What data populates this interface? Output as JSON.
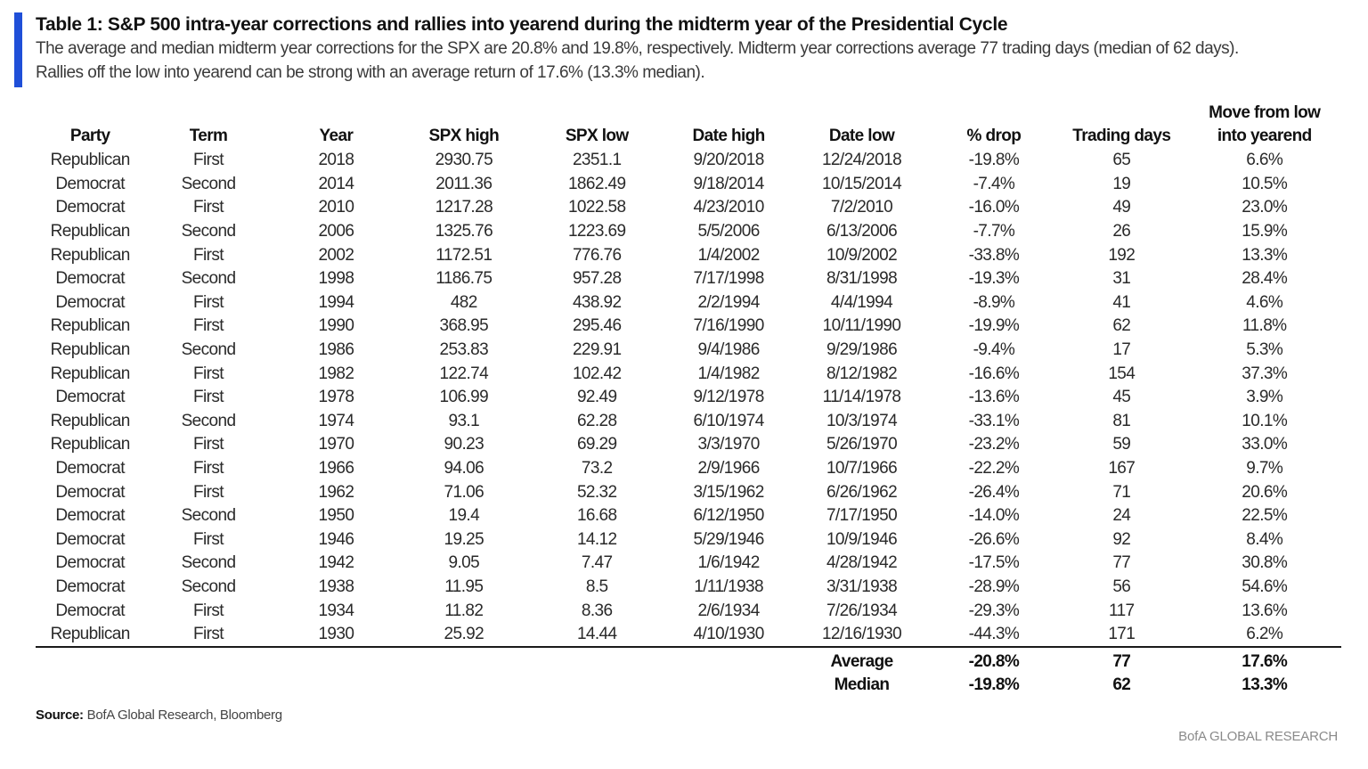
{
  "header": {
    "title": "Table 1: S&P 500 intra-year  corrections and rallies into yearend during the midterm year of the Presidential Cycle",
    "subtitle_line1": "The average and median midterm year corrections for the SPX are 20.8% and 19.8%, respectively. Midterm year corrections average 77 trading days (median of 62 days).",
    "subtitle_line2": "Rallies off the low into yearend can be strong with an average return of 17.6% (13.3% median).",
    "accent_color": "#1f4fd8"
  },
  "table": {
    "columns": {
      "party": "Party",
      "term": "Term",
      "year": "Year",
      "spx_high": "SPX high",
      "spx_low": "SPX low",
      "date_high": "Date high",
      "date_low": "Date low",
      "pct_drop": "% drop",
      "trading_days": "Trading days",
      "move_line1": "Move from low",
      "move_line2": "into yearend"
    },
    "rows": [
      [
        "Republican",
        "First",
        "2018",
        "2930.75",
        "2351.1",
        "9/20/2018",
        "12/24/2018",
        "-19.8%",
        "65",
        "6.6%"
      ],
      [
        "Democrat",
        "Second",
        "2014",
        "2011.36",
        "1862.49",
        "9/18/2014",
        "10/15/2014",
        "-7.4%",
        "19",
        "10.5%"
      ],
      [
        "Democrat",
        "First",
        "2010",
        "1217.28",
        "1022.58",
        "4/23/2010",
        "7/2/2010",
        "-16.0%",
        "49",
        "23.0%"
      ],
      [
        "Republican",
        "Second",
        "2006",
        "1325.76",
        "1223.69",
        "5/5/2006",
        "6/13/2006",
        "-7.7%",
        "26",
        "15.9%"
      ],
      [
        "Republican",
        "First",
        "2002",
        "1172.51",
        "776.76",
        "1/4/2002",
        "10/9/2002",
        "-33.8%",
        "192",
        "13.3%"
      ],
      [
        "Democrat",
        "Second",
        "1998",
        "1186.75",
        "957.28",
        "7/17/1998",
        "8/31/1998",
        "-19.3%",
        "31",
        "28.4%"
      ],
      [
        "Democrat",
        "First",
        "1994",
        "482",
        "438.92",
        "2/2/1994",
        "4/4/1994",
        "-8.9%",
        "41",
        "4.6%"
      ],
      [
        "Republican",
        "First",
        "1990",
        "368.95",
        "295.46",
        "7/16/1990",
        "10/11/1990",
        "-19.9%",
        "62",
        "11.8%"
      ],
      [
        "Republican",
        "Second",
        "1986",
        "253.83",
        "229.91",
        "9/4/1986",
        "9/29/1986",
        "-9.4%",
        "17",
        "5.3%"
      ],
      [
        "Republican",
        "First",
        "1982",
        "122.74",
        "102.42",
        "1/4/1982",
        "8/12/1982",
        "-16.6%",
        "154",
        "37.3%"
      ],
      [
        "Democrat",
        "First",
        "1978",
        "106.99",
        "92.49",
        "9/12/1978",
        "11/14/1978",
        "-13.6%",
        "45",
        "3.9%"
      ],
      [
        "Republican",
        "Second",
        "1974",
        "93.1",
        "62.28",
        "6/10/1974",
        "10/3/1974",
        "-33.1%",
        "81",
        "10.1%"
      ],
      [
        "Republican",
        "First",
        "1970",
        "90.23",
        "69.29",
        "3/3/1970",
        "5/26/1970",
        "-23.2%",
        "59",
        "33.0%"
      ],
      [
        "Democrat",
        "First",
        "1966",
        "94.06",
        "73.2",
        "2/9/1966",
        "10/7/1966",
        "-22.2%",
        "167",
        "9.7%"
      ],
      [
        "Democrat",
        "First",
        "1962",
        "71.06",
        "52.32",
        "3/15/1962",
        "6/26/1962",
        "-26.4%",
        "71",
        "20.6%"
      ],
      [
        "Democrat",
        "Second",
        "1950",
        "19.4",
        "16.68",
        "6/12/1950",
        "7/17/1950",
        "-14.0%",
        "24",
        "22.5%"
      ],
      [
        "Democrat",
        "First",
        "1946",
        "19.25",
        "14.12",
        "5/29/1946",
        "10/9/1946",
        "-26.6%",
        "92",
        "8.4%"
      ],
      [
        "Democrat",
        "Second",
        "1942",
        "9.05",
        "7.47",
        "1/6/1942",
        "4/28/1942",
        "-17.5%",
        "77",
        "30.8%"
      ],
      [
        "Democrat",
        "Second",
        "1938",
        "11.95",
        "8.5",
        "1/11/1938",
        "3/31/1938",
        "-28.9%",
        "56",
        "54.6%"
      ],
      [
        "Democrat",
        "First",
        "1934",
        "11.82",
        "8.36",
        "2/6/1934",
        "7/26/1934",
        "-29.3%",
        "117",
        "13.6%"
      ],
      [
        "Republican",
        "First",
        "1930",
        "25.92",
        "14.44",
        "4/10/1930",
        "12/16/1930",
        "-44.3%",
        "171",
        "6.2%"
      ]
    ],
    "summary": {
      "average": {
        "label": "Average",
        "pct_drop": "-20.8%",
        "trading_days": "77",
        "move": "17.6%"
      },
      "median": {
        "label": "Median",
        "pct_drop": "-19.8%",
        "trading_days": "62",
        "move": "13.3%"
      }
    }
  },
  "footer": {
    "source_label": "Source:",
    "source_text": " BofA Global Research, Bloomberg",
    "branding": "BofA GLOBAL RESEARCH"
  }
}
